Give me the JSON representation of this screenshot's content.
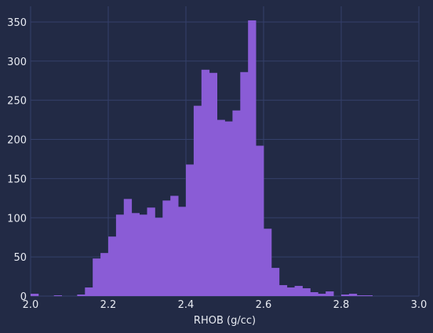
{
  "chart_data": {
    "type": "bar",
    "xlabel": "RHOB (g/cc)",
    "ylabel": "",
    "xlim": [
      2.0,
      3.0
    ],
    "ylim": [
      0,
      370
    ],
    "xticks": [
      2.0,
      2.2,
      2.4,
      2.6,
      2.8,
      3.0
    ],
    "xtick_labels": [
      "2.0",
      "2.2",
      "2.4",
      "2.6",
      "2.8",
      "3.0"
    ],
    "yticks": [
      0,
      50,
      100,
      150,
      200,
      250,
      300,
      350
    ],
    "ytick_labels": [
      "0",
      "50",
      "100",
      "150",
      "200",
      "250",
      "300",
      "350"
    ],
    "grid": true,
    "bar_color": "#8a5cd6",
    "bin_edges": [
      2.0,
      2.02,
      2.04,
      2.06,
      2.08,
      2.1,
      2.12,
      2.14,
      2.16,
      2.18,
      2.2,
      2.22,
      2.24,
      2.26,
      2.28,
      2.3,
      2.32,
      2.34,
      2.36,
      2.38,
      2.4,
      2.42,
      2.44,
      2.46,
      2.48,
      2.5,
      2.52,
      2.54,
      2.56,
      2.58,
      2.6,
      2.62,
      2.64,
      2.66,
      2.68,
      2.7,
      2.72,
      2.74,
      2.76,
      2.78,
      2.8,
      2.82,
      2.84,
      2.86,
      2.88,
      2.9
    ],
    "counts": [
      3,
      0,
      0,
      1,
      0,
      0,
      2,
      11,
      48,
      55,
      76,
      104,
      124,
      106,
      104,
      113,
      100,
      122,
      128,
      114,
      168,
      243,
      289,
      285,
      225,
      223,
      237,
      286,
      352,
      192,
      86,
      36,
      14,
      11,
      13,
      10,
      5,
      3,
      6,
      0,
      2,
      3,
      1,
      1,
      0
    ]
  }
}
